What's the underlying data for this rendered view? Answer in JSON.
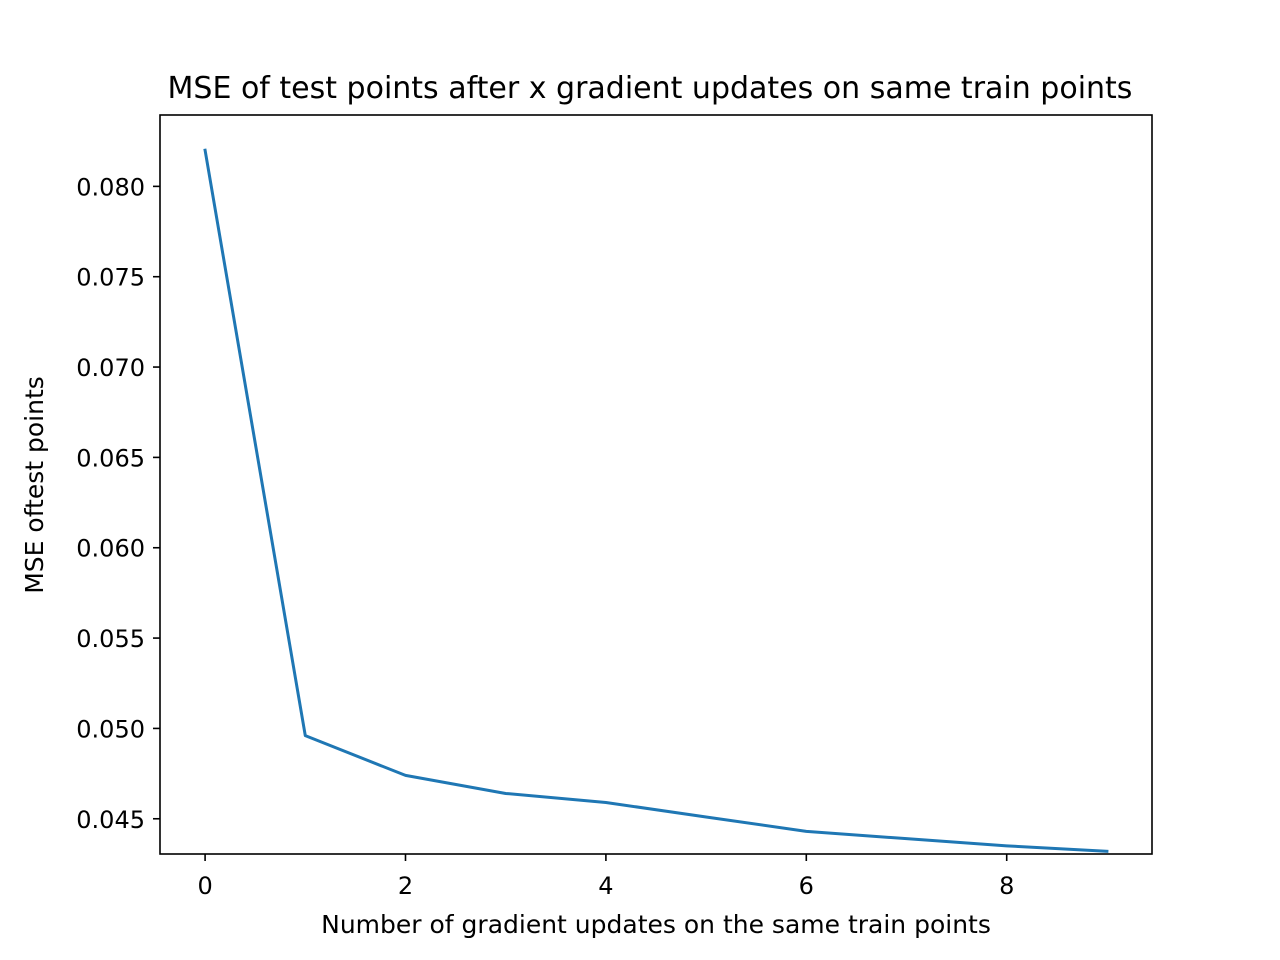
{
  "chart_data": {
    "type": "line",
    "title": "MSE of test points after x gradient updates on same train points",
    "xlabel": "Number of gradient updates on the same train points",
    "ylabel": "MSE oftest points",
    "x": [
      0,
      1,
      2,
      3,
      4,
      5,
      6,
      7,
      8,
      9
    ],
    "series": [
      {
        "values": [
          0.082,
          0.0496,
          0.0474,
          0.0464,
          0.0459,
          0.0451,
          0.0443,
          0.0439,
          0.0435,
          0.0432
        ],
        "color": "#1f77b4"
      }
    ],
    "xlim": [
      -0.45,
      9.45
    ],
    "ylim": [
      0.04305,
      0.08395
    ],
    "xticks": [
      0,
      2,
      4,
      6,
      8
    ],
    "xtick_labels": [
      "0",
      "2",
      "4",
      "6",
      "8"
    ],
    "yticks": [
      0.045,
      0.05,
      0.055,
      0.06,
      0.065,
      0.07,
      0.075,
      0.08
    ],
    "ytick_labels": [
      "0.045",
      "0.050",
      "0.055",
      "0.060",
      "0.065",
      "0.070",
      "0.075",
      "0.080"
    ],
    "grid": false,
    "legend": false
  }
}
